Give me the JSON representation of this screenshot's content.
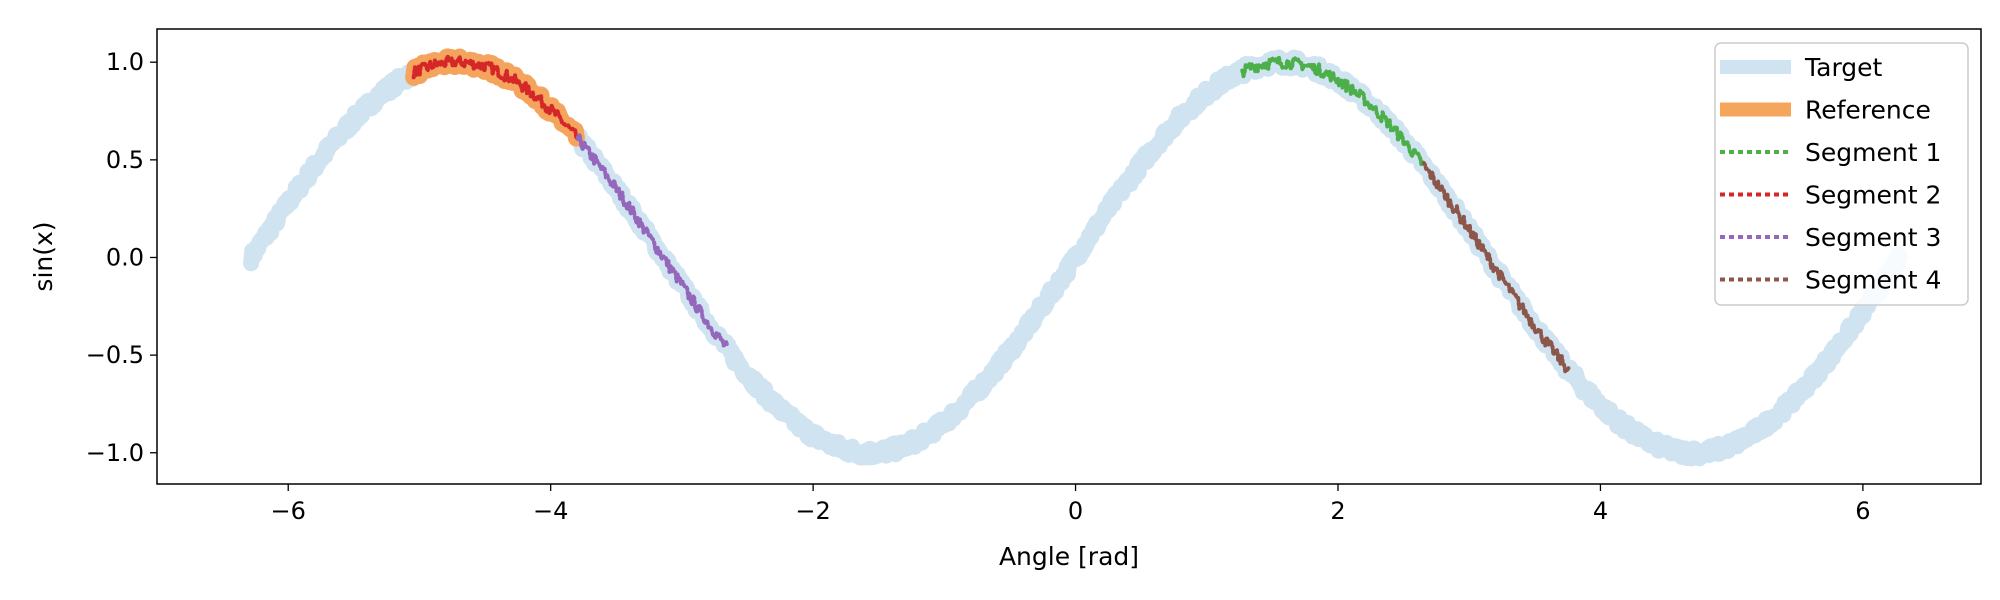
{
  "chart_data": {
    "type": "line",
    "xlabel": "Angle [rad]",
    "ylabel": "sin(x)",
    "xlim": [
      -7.0,
      6.9
    ],
    "ylim": [
      -1.16,
      1.17
    ],
    "xticks": [
      -6,
      -4,
      -2,
      0,
      2,
      4,
      6
    ],
    "xtick_labels": [
      "−6",
      "−4",
      "−2",
      "0",
      "2",
      "4",
      "6"
    ],
    "yticks": [
      -1.0,
      -0.5,
      0.0,
      0.5,
      1.0
    ],
    "ytick_labels": [
      "−1.0",
      "−0.5",
      "0.0",
      "0.5",
      "1.0"
    ],
    "grid": false,
    "legend_position": "top-right",
    "function": "sin(x)",
    "noise_amplitude": 0.03,
    "series": [
      {
        "name": "Target",
        "x_range": [
          -6.2832,
          6.2832
        ],
        "color": "#a9cce3",
        "style": "solid"
      },
      {
        "name": "Reference",
        "x_range": [
          -5.05,
          -3.8
        ],
        "color": "#f5a053",
        "style": "solid"
      },
      {
        "name": "Segment 1",
        "x_range": [
          1.27,
          2.65
        ],
        "color": "#4daf4a",
        "style": "dotted"
      },
      {
        "name": "Segment 2",
        "x_range": [
          -5.05,
          -3.8
        ],
        "color": "#d62728",
        "style": "dotted"
      },
      {
        "name": "Segment 3",
        "x_range": [
          -3.8,
          -2.65
        ],
        "color": "#9467bd",
        "style": "dotted"
      },
      {
        "name": "Segment 4",
        "x_range": [
          2.65,
          3.77
        ],
        "color": "#8c564b",
        "style": "dotted"
      }
    ]
  }
}
